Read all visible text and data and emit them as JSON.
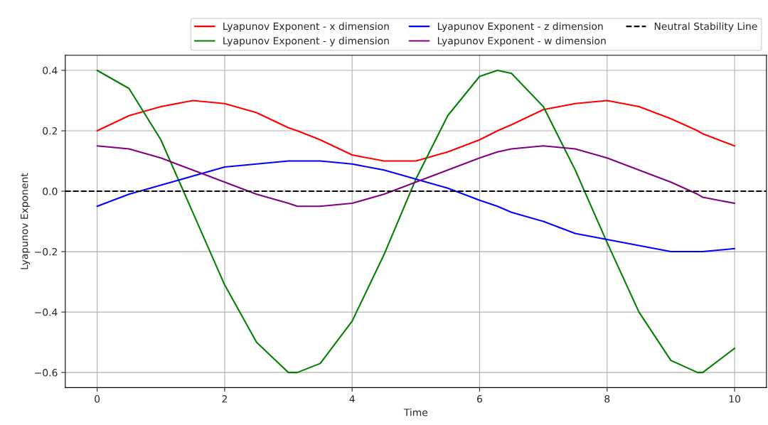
{
  "chart_data": {
    "type": "line",
    "xlabel": "Time",
    "ylabel": "Lyapunov Exponent",
    "x": [
      0,
      0.5,
      1,
      1.5,
      2,
      2.5,
      3,
      3.14,
      3.5,
      4,
      4.5,
      5,
      5.5,
      6,
      6.28,
      6.5,
      7,
      7.5,
      8,
      8.5,
      9,
      9.42,
      9.5,
      10
    ],
    "series": [
      {
        "name": "Lyapunov Exponent - x dimension",
        "color": "#ff0000",
        "values": [
          0.2,
          0.25,
          0.28,
          0.3,
          0.29,
          0.26,
          0.21,
          0.2,
          0.17,
          0.12,
          0.1,
          0.1,
          0.13,
          0.17,
          0.2,
          0.22,
          0.27,
          0.29,
          0.3,
          0.28,
          0.24,
          0.2,
          0.19,
          0.15
        ]
      },
      {
        "name": "Lyapunov Exponent - y dimension",
        "color": "#008000",
        "values": [
          0.4,
          0.34,
          0.17,
          -0.07,
          -0.31,
          -0.5,
          -0.6,
          -0.6,
          -0.57,
          -0.43,
          -0.21,
          0.04,
          0.25,
          0.38,
          0.4,
          0.39,
          0.28,
          0.07,
          -0.17,
          -0.4,
          -0.56,
          -0.6,
          -0.6,
          -0.52
        ]
      },
      {
        "name": "Lyapunov Exponent - z dimension",
        "color": "#0000ff",
        "values": [
          -0.05,
          -0.01,
          0.02,
          0.05,
          0.08,
          0.09,
          0.1,
          0.1,
          0.1,
          0.09,
          0.07,
          0.04,
          0.01,
          -0.03,
          -0.05,
          -0.07,
          -0.1,
          -0.14,
          -0.16,
          -0.18,
          -0.2,
          -0.2,
          -0.2,
          -0.19
        ]
      },
      {
        "name": "Lyapunov Exponent - w dimension",
        "color": "#800080",
        "values": [
          0.15,
          0.14,
          0.11,
          0.07,
          0.03,
          -0.01,
          -0.04,
          -0.05,
          -0.05,
          -0.04,
          -0.01,
          0.03,
          0.07,
          0.11,
          0.13,
          0.14,
          0.15,
          0.14,
          0.11,
          0.07,
          0.03,
          -0.01,
          -0.02,
          -0.04
        ]
      }
    ],
    "ref_lines": [
      {
        "axis": "y",
        "value": 0,
        "label": "Neutral Stability Line",
        "color": "#000000",
        "line_style": "dashed"
      }
    ],
    "xlim": [
      -0.5,
      10.5
    ],
    "ylim": [
      -0.65,
      0.45
    ],
    "xticks": [
      0,
      2,
      4,
      6,
      8,
      10
    ],
    "yticks": [
      {
        "value": -0.6,
        "label": "−0.6"
      },
      {
        "value": -0.4,
        "label": "−0.4"
      },
      {
        "value": -0.2,
        "label": "−0.2"
      },
      {
        "value": 0,
        "label": "0.0"
      },
      {
        "value": 0.2,
        "label": "0.2"
      },
      {
        "value": 0.4,
        "label": "0.4"
      }
    ],
    "grid": true,
    "legend": "top right",
    "line_style": "solid",
    "marker": "none"
  }
}
